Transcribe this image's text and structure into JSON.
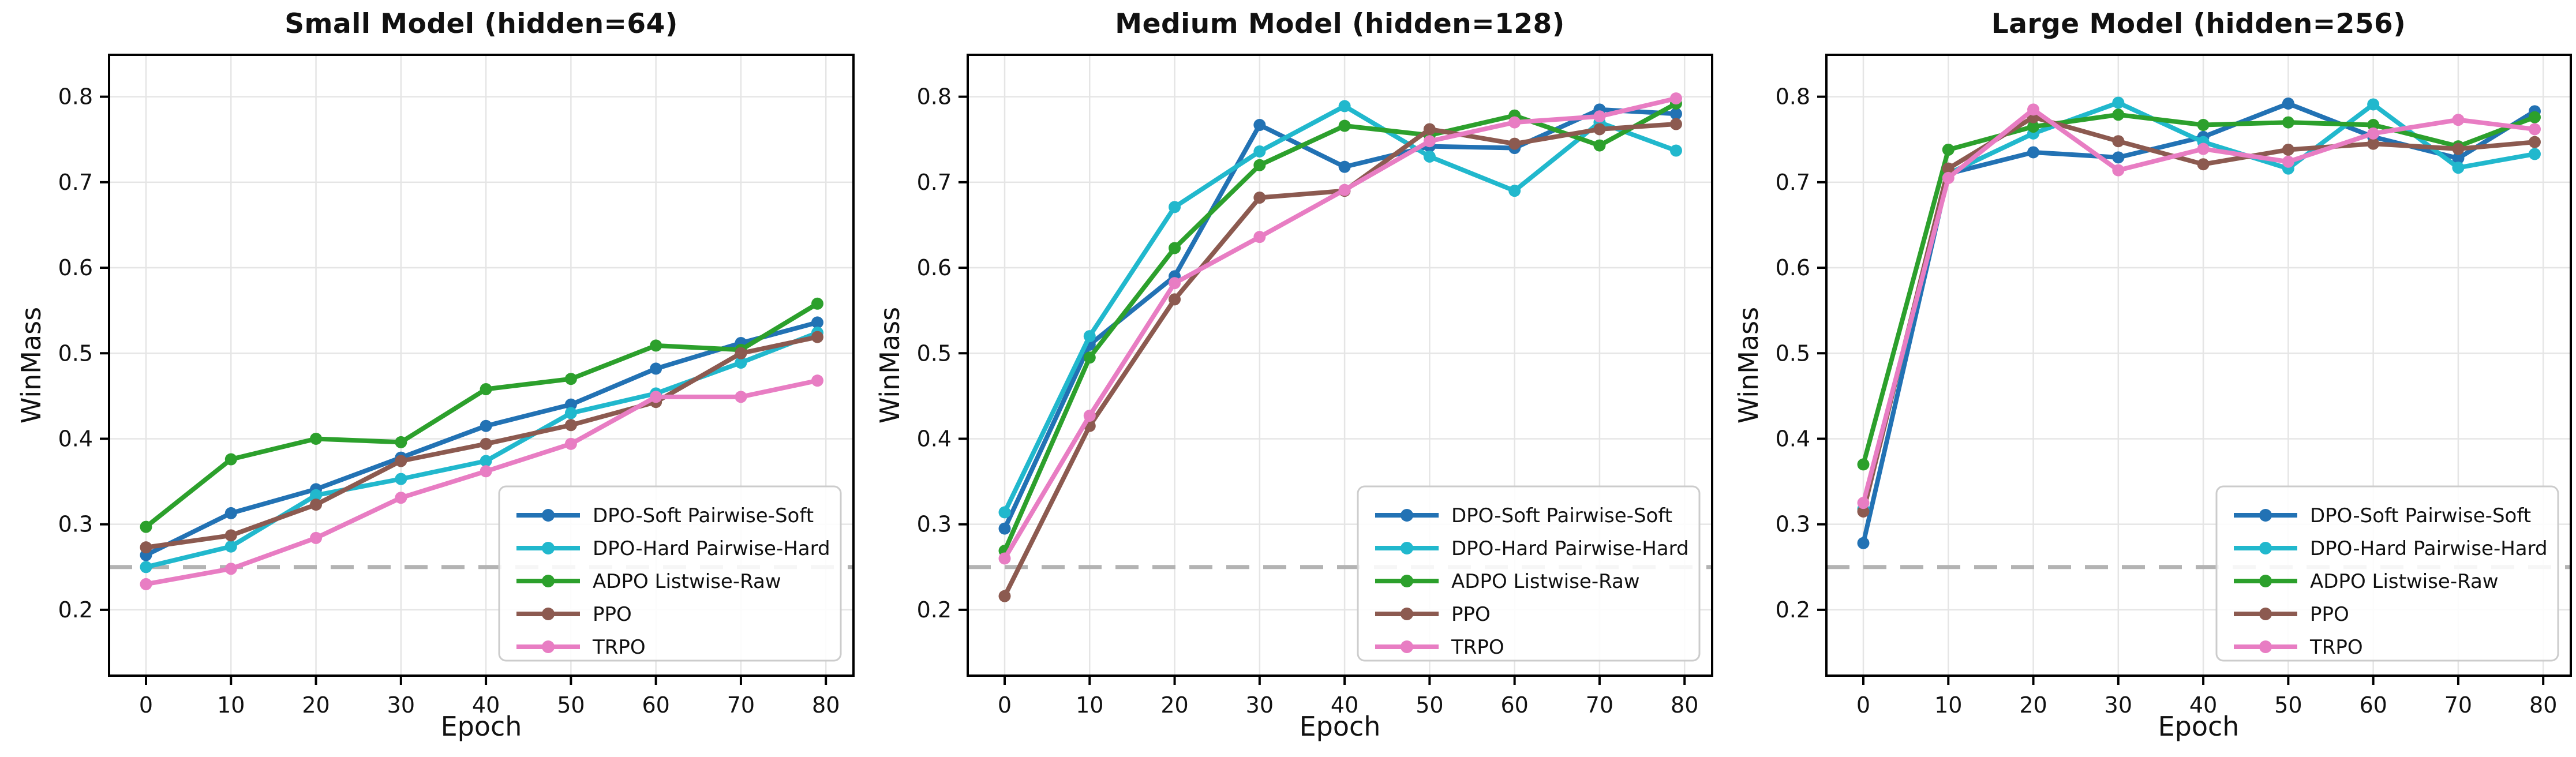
{
  "figure": {
    "background": "#ffffff",
    "text_color": "#111111"
  },
  "chart_data": [
    {
      "type": "line",
      "title": "Small Model (hidden=64)",
      "xlabel": "Epoch",
      "ylabel": "WinMass",
      "x": [
        0,
        10,
        20,
        30,
        40,
        50,
        60,
        70,
        79
      ],
      "xticks": [
        0,
        10,
        20,
        30,
        40,
        50,
        60,
        70,
        80
      ],
      "yticks": [
        0.2,
        0.3,
        0.4,
        0.5,
        0.6,
        0.7,
        0.8
      ],
      "ylim": [
        0.123,
        0.849
      ],
      "grid": true,
      "legend_position": "lower right",
      "baseline": {
        "value": 0.25,
        "color": "#b3b3b3",
        "style": "dashed"
      },
      "series": [
        {
          "name": "DPO-Soft Pairwise-Soft",
          "color": "#2272b4",
          "values": [
            0.264,
            0.313,
            0.341,
            0.378,
            0.415,
            0.44,
            0.482,
            0.512,
            0.536
          ]
        },
        {
          "name": "DPO-Hard Pairwise-Hard",
          "color": "#21b8cd",
          "values": [
            0.25,
            0.274,
            0.334,
            0.353,
            0.374,
            0.43,
            0.453,
            0.489,
            0.524
          ]
        },
        {
          "name": "ADPO Listwise-Raw",
          "color": "#2ca02c",
          "values": [
            0.297,
            0.376,
            0.4,
            0.396,
            0.458,
            0.47,
            0.509,
            0.504,
            0.558
          ]
        },
        {
          "name": "PPO",
          "color": "#8c5a50",
          "values": [
            0.273,
            0.287,
            0.323,
            0.374,
            0.394,
            0.416,
            0.443,
            0.5,
            0.519
          ]
        },
        {
          "name": "TRPO",
          "color": "#e87dc3",
          "values": [
            0.23,
            0.248,
            0.284,
            0.331,
            0.362,
            0.394,
            0.449,
            0.449,
            0.468
          ]
        }
      ]
    },
    {
      "type": "line",
      "title": "Medium Model (hidden=128)",
      "xlabel": "Epoch",
      "ylabel": "WinMass",
      "x": [
        0,
        10,
        20,
        30,
        40,
        50,
        60,
        70,
        79
      ],
      "xticks": [
        0,
        10,
        20,
        30,
        40,
        50,
        60,
        70,
        80
      ],
      "yticks": [
        0.2,
        0.3,
        0.4,
        0.5,
        0.6,
        0.7,
        0.8
      ],
      "ylim": [
        0.123,
        0.849
      ],
      "grid": true,
      "legend_position": "lower right",
      "baseline": {
        "value": 0.25,
        "color": "#b3b3b3",
        "style": "dashed"
      },
      "series": [
        {
          "name": "DPO-Soft Pairwise-Soft",
          "color": "#2272b4",
          "values": [
            0.295,
            0.51,
            0.59,
            0.767,
            0.718,
            0.742,
            0.74,
            0.785,
            0.78
          ]
        },
        {
          "name": "DPO-Hard Pairwise-Hard",
          "color": "#21b8cd",
          "values": [
            0.314,
            0.52,
            0.671,
            0.736,
            0.789,
            0.73,
            0.69,
            0.77,
            0.737
          ]
        },
        {
          "name": "ADPO Listwise-Raw",
          "color": "#2ca02c",
          "values": [
            0.269,
            0.495,
            0.623,
            0.72,
            0.766,
            0.755,
            0.778,
            0.743,
            0.792
          ]
        },
        {
          "name": "PPO",
          "color": "#8c5a50",
          "values": [
            0.216,
            0.415,
            0.563,
            0.682,
            0.69,
            0.762,
            0.745,
            0.762,
            0.768
          ]
        },
        {
          "name": "TRPO",
          "color": "#e87dc3",
          "values": [
            0.26,
            0.427,
            0.582,
            0.636,
            0.691,
            0.748,
            0.77,
            0.777,
            0.798
          ]
        }
      ]
    },
    {
      "type": "line",
      "title": "Large Model (hidden=256)",
      "xlabel": "Epoch",
      "ylabel": "WinMass",
      "x": [
        0,
        10,
        20,
        30,
        40,
        50,
        60,
        70,
        79
      ],
      "xticks": [
        0,
        10,
        20,
        30,
        40,
        50,
        60,
        70,
        80
      ],
      "yticks": [
        0.2,
        0.3,
        0.4,
        0.5,
        0.6,
        0.7,
        0.8
      ],
      "ylim": [
        0.123,
        0.849
      ],
      "grid": true,
      "legend_position": "lower right",
      "baseline": {
        "value": 0.25,
        "color": "#b3b3b3",
        "style": "dashed"
      },
      "series": [
        {
          "name": "DPO-Soft Pairwise-Soft",
          "color": "#2272b4",
          "values": [
            0.278,
            0.71,
            0.735,
            0.729,
            0.753,
            0.792,
            0.753,
            0.728,
            0.783
          ]
        },
        {
          "name": "DPO-Hard Pairwise-Hard",
          "color": "#21b8cd",
          "values": [
            0.318,
            0.71,
            0.757,
            0.793,
            0.747,
            0.716,
            0.791,
            0.717,
            0.733
          ]
        },
        {
          "name": "ADPO Listwise-Raw",
          "color": "#2ca02c",
          "values": [
            0.37,
            0.738,
            0.765,
            0.779,
            0.767,
            0.77,
            0.767,
            0.742,
            0.776
          ]
        },
        {
          "name": "PPO",
          "color": "#8c5a50",
          "values": [
            0.315,
            0.716,
            0.776,
            0.748,
            0.721,
            0.738,
            0.745,
            0.739,
            0.747
          ]
        },
        {
          "name": "TRPO",
          "color": "#e87dc3",
          "values": [
            0.325,
            0.705,
            0.785,
            0.714,
            0.739,
            0.724,
            0.757,
            0.773,
            0.762
          ]
        }
      ]
    }
  ]
}
